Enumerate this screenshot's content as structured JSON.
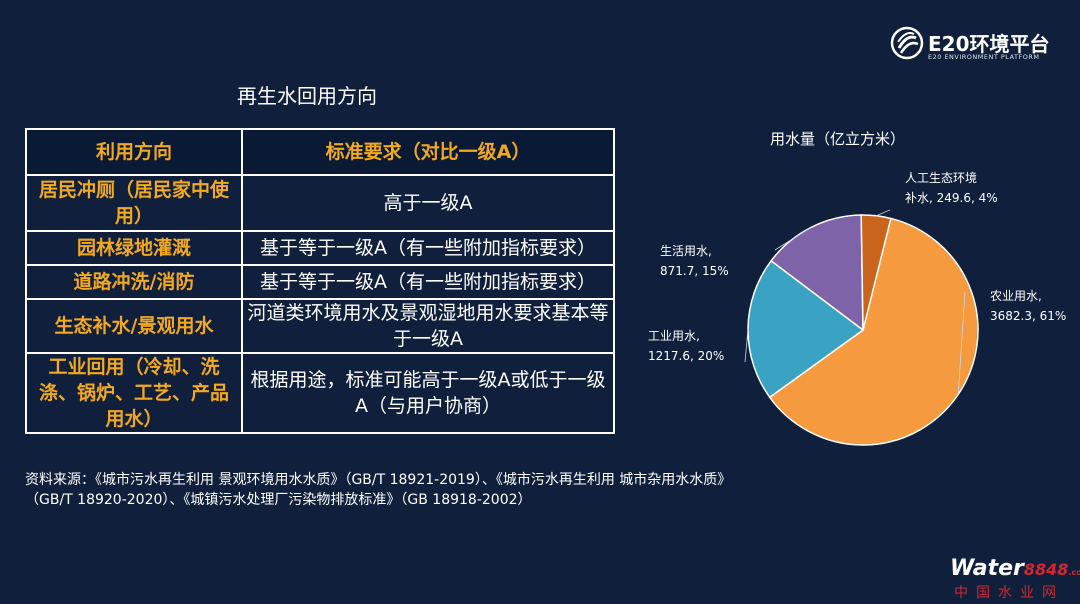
{
  "logo": {
    "text": "E20环境平台",
    "subtitle": "E20 ENVIRONMENT PLATFORM",
    "icon": "e20-swirl-logo-icon"
  },
  "table": {
    "title": "再生水回用方向",
    "headers": [
      "利用方向",
      "标准要求（对比一级A）"
    ],
    "rows": [
      {
        "use": "居民冲厕（居民家中使用）",
        "standard": "高于一级A"
      },
      {
        "use": "园林绿地灌溉",
        "standard": "基于等于一级A（有一些附加指标要求）"
      },
      {
        "use": "道路冲洗/消防",
        "standard": "基于等于一级A（有一些附加指标要求）"
      },
      {
        "use": "生态补水/景观用水",
        "standard": "河道类环境用水及景观湿地用水要求基本等于一级A"
      },
      {
        "use": "工业回用（冷却、洗涤、锅炉、工艺、产品用水）",
        "standard": "根据用途，标准可能高于一级A或低于一级A（与用户协商）"
      }
    ],
    "colors": {
      "header_text": "#f2a81f",
      "border": "#ffffff"
    }
  },
  "source": "资料来源：《城市污水再生利用 景观环境用水水质》（GB/T 18921-2019）、《城市污水再生利用 城市杂用水水质》（GB/T 18920-2020）、《城镇污水处理厂污染物排放标准》（GB 18918-2002）",
  "chart_data": {
    "type": "pie",
    "title": "用水量（亿立方米）",
    "slices": [
      {
        "name": "农业用水",
        "value": 3682.3,
        "percent": "61%",
        "color": "#f59a3e",
        "label_line1": "农业用水,",
        "label_line2": "3682.3, 61%"
      },
      {
        "name": "工业用水",
        "value": 1217.6,
        "percent": "20%",
        "color": "#3aa3c4",
        "label_line1": "工业用水,",
        "label_line2": "1217.6, 20%"
      },
      {
        "name": "生活用水",
        "value": 871.7,
        "percent": "15%",
        "color": "#7e63a8",
        "label_line1": "生活用水,",
        "label_line2": "871.7, 15%"
      },
      {
        "name": "人工生态环境补水",
        "value": 249.6,
        "percent": "4%",
        "color": "#c9641d",
        "label_line1": "人工生态环境",
        "label_line2": "补水, 249.6, 4%"
      }
    ]
  },
  "watermark": {
    "brand": "Water",
    "number": "8848",
    "domain": ".com",
    "cn": "中国水业网"
  }
}
